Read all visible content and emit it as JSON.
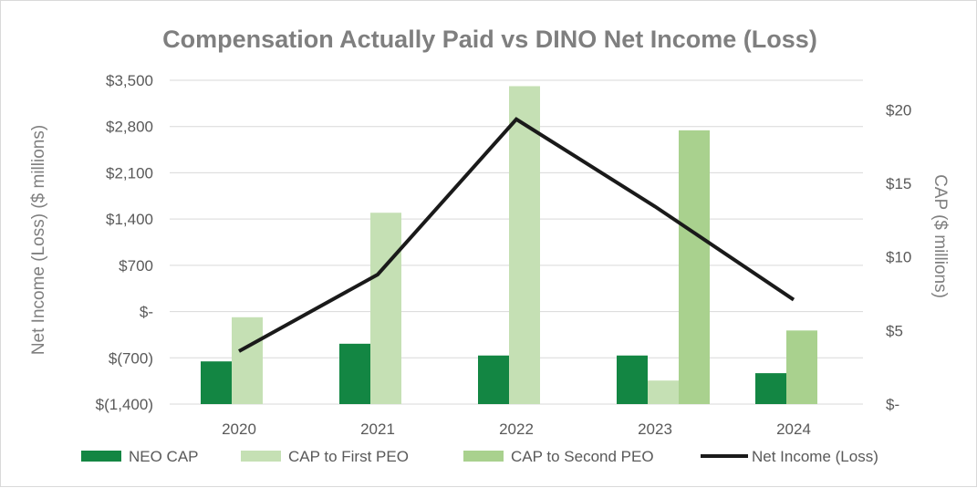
{
  "chart_data": {
    "type": "bar",
    "title": "Compensation Actually Paid vs DINO Net Income (Loss)",
    "categories": [
      "2020",
      "2021",
      "2022",
      "2023",
      "2024"
    ],
    "left_axis": {
      "label": "Net Income (Loss) ($ millions)",
      "range": [
        -1400,
        3500
      ],
      "ticks": [
        -1400,
        -700,
        0,
        700,
        1400,
        2100,
        2800,
        3500
      ],
      "tick_labels": [
        "$(1,400)",
        "$(700)",
        "$-",
        "$700",
        "$1,400",
        "$2,100",
        "$2,800",
        "$3,500"
      ]
    },
    "right_axis": {
      "label": "CAP ($ millions)",
      "range": [
        0,
        22
      ],
      "ticks": [
        0,
        5,
        10,
        15,
        20
      ],
      "tick_labels": [
        "$-",
        "$5",
        "$10",
        "$15",
        "$20"
      ]
    },
    "series": [
      {
        "name": "NEO CAP",
        "kind": "bar",
        "axis": "right",
        "color": "#138643",
        "values": [
          2.9,
          4.1,
          3.3,
          3.3,
          2.1
        ]
      },
      {
        "name": "CAP to First PEO",
        "kind": "bar",
        "axis": "right",
        "color": "#c5e0b4",
        "values": [
          5.9,
          13.0,
          21.6,
          1.6,
          null
        ]
      },
      {
        "name": "CAP to Second PEO",
        "kind": "bar",
        "axis": "right",
        "color": "#a9d18e",
        "values": [
          null,
          null,
          null,
          18.6,
          5.0
        ]
      },
      {
        "name": "Net Income (Loss)",
        "kind": "line",
        "axis": "left",
        "color": "#1a1a1a",
        "values": [
          -600,
          560,
          2910,
          1590,
          180
        ]
      }
    ],
    "legend": "bottom",
    "grid": true
  }
}
